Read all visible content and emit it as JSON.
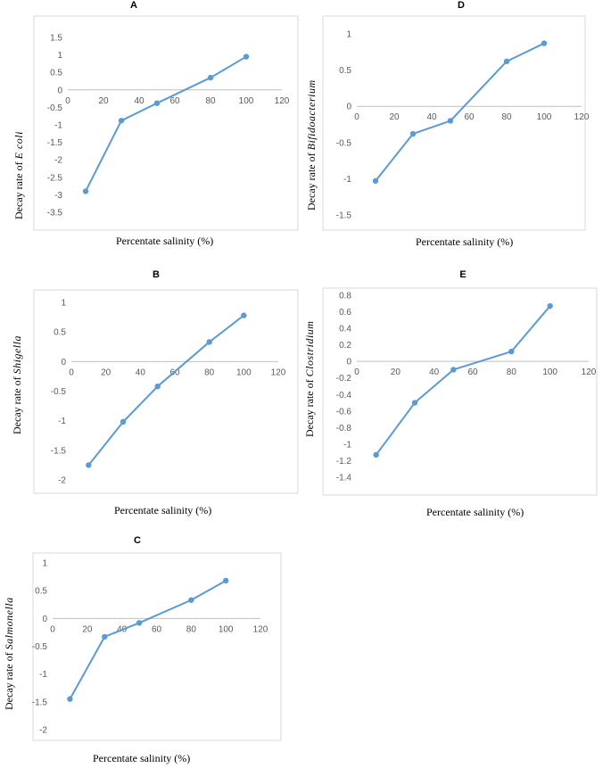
{
  "chart_data": [
    {
      "id": "A",
      "type": "line",
      "panel_label": "A",
      "title": "",
      "ylabel_prefix": "Decay rate of",
      "ylabel_organism": "E coli",
      "xlabel": "Percentate salinity (%)",
      "xlim": [
        0,
        120
      ],
      "xticks": [
        0,
        20,
        40,
        60,
        80,
        100,
        120
      ],
      "ylim": [
        -3.5,
        1.5
      ],
      "yticks": [
        1.5,
        1,
        0.5,
        0,
        -0.5,
        -1,
        -1.5,
        -2,
        -2.5,
        -3,
        -3.5
      ],
      "x": [
        10,
        30,
        50,
        80,
        100
      ],
      "values": [
        -2.9,
        -0.88,
        -0.38,
        0.35,
        0.95
      ],
      "color": "#5B9BD5"
    },
    {
      "id": "D",
      "type": "line",
      "panel_label": "D",
      "title": "",
      "ylabel_prefix": "Decay rate of",
      "ylabel_organism": "Bifidoacterium",
      "xlabel": "Percentate salinity (%)",
      "xlim": [
        0,
        120
      ],
      "xticks": [
        0,
        20,
        40,
        60,
        80,
        100,
        120
      ],
      "ylim": [
        -1.5,
        1
      ],
      "yticks": [
        1,
        0.5,
        0,
        -0.5,
        -1,
        -1.5
      ],
      "x": [
        10,
        30,
        50,
        80,
        100
      ],
      "values": [
        -1.03,
        -0.38,
        -0.2,
        0.62,
        0.87
      ],
      "color": "#5B9BD5"
    },
    {
      "id": "B",
      "type": "line",
      "panel_label": "B",
      "title": "",
      "ylabel_prefix": "Decay rate of",
      "ylabel_organism": "Shigella",
      "xlabel": "Percentate salinity (%)",
      "xlim": [
        0,
        120
      ],
      "xticks": [
        0,
        20,
        40,
        60,
        80,
        100,
        120
      ],
      "ylim": [
        -2,
        1
      ],
      "yticks": [
        1,
        0.5,
        0,
        -0.5,
        -1,
        -1.5,
        -2
      ],
      "x": [
        10,
        30,
        50,
        80,
        100
      ],
      "values": [
        -1.75,
        -1.02,
        -0.42,
        0.33,
        0.78
      ],
      "color": "#5B9BD5"
    },
    {
      "id": "E",
      "type": "line",
      "panel_label": "E",
      "title": "",
      "ylabel_prefix": "Decay rate of",
      "ylabel_organism": "Clostridium",
      "xlabel": "Percentate salinity (%)",
      "xlim": [
        0,
        120
      ],
      "xticks": [
        0,
        20,
        40,
        60,
        80,
        100,
        120
      ],
      "ylim": [
        -1.4,
        0.8
      ],
      "yticks": [
        0.8,
        0.6,
        0.4,
        0.2,
        0,
        -0.2,
        -0.4,
        -0.6,
        -0.8,
        -1,
        -1.2,
        -1.4
      ],
      "x": [
        10,
        30,
        50,
        80,
        100
      ],
      "values": [
        -1.13,
        -0.5,
        -0.1,
        0.12,
        0.67
      ],
      "color": "#5B9BD5"
    },
    {
      "id": "C",
      "type": "line",
      "panel_label": "C",
      "title": "",
      "ylabel_prefix": "Decay rate of",
      "ylabel_organism": "Salmonella",
      "xlabel": "Percentate salinity (%)",
      "xlim": [
        0,
        120
      ],
      "xticks": [
        0,
        20,
        40,
        60,
        80,
        100,
        120
      ],
      "ylim": [
        -2,
        1
      ],
      "yticks": [
        1,
        0.5,
        0,
        -0.5,
        -1,
        -1.5,
        -2
      ],
      "x": [
        10,
        30,
        50,
        80,
        100
      ],
      "values": [
        -1.45,
        -0.33,
        -0.08,
        0.33,
        0.68
      ],
      "color": "#5B9BD5"
    }
  ]
}
